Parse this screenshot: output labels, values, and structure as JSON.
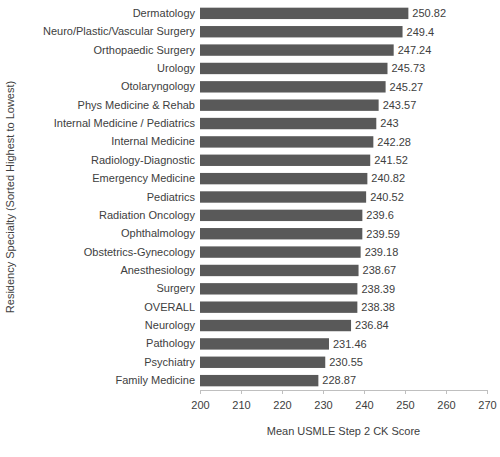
{
  "chart_data": {
    "type": "bar",
    "orientation": "horizontal",
    "x_label": "Mean USMLE Step 2 CK Score",
    "y_label": "Residency Specialty (Sorted Highest to Lowest)",
    "categories": [
      "Dermatology",
      "Neuro/Plastic/Vascular Surgery",
      "Orthopaedic Surgery",
      "Urology",
      "Otolaryngology",
      "Phys Medicine & Rehab",
      "Internal Medicine / Pediatrics",
      "Internal Medicine",
      "Radiology-Diagnostic",
      "Emergency Medicine",
      "Pediatrics",
      "Radiation Oncology",
      "Ophthalmology",
      "Obstetrics-Gynecology",
      "Anesthesiology",
      "Surgery",
      "OVERALL",
      "Neurology",
      "Pathology",
      "Psychiatry",
      "Family Medicine"
    ],
    "values": [
      250.82,
      249.4,
      247.24,
      245.73,
      245.27,
      243.57,
      243,
      242.28,
      241.52,
      240.82,
      240.52,
      239.6,
      239.59,
      239.18,
      238.67,
      238.39,
      238.38,
      236.84,
      231.46,
      230.55,
      228.87
    ],
    "color": "#595959",
    "xlim": [
      200,
      270
    ],
    "xticks": [
      200,
      210,
      220,
      230,
      240,
      250,
      260,
      270
    ],
    "grid": false,
    "data_labels": true
  }
}
